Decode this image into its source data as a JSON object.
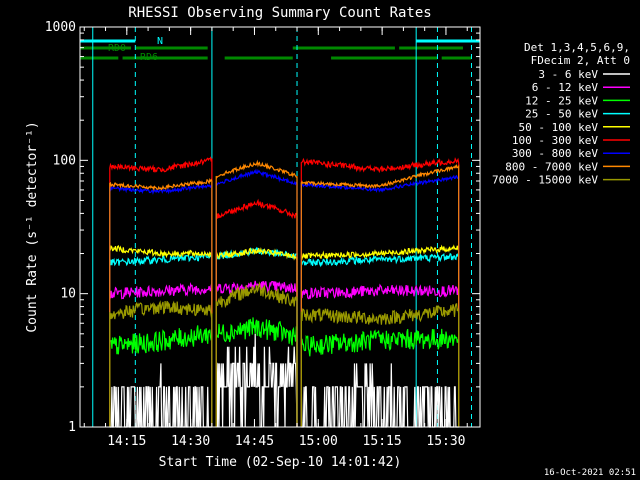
{
  "chart_data": {
    "type": "line",
    "title": "RHESSI Observing Summary Count Rates",
    "xlabel": "Start Time (02-Sep-10 14:01:42)",
    "ylabel": "Count Rate (s⁻¹ detector⁻¹)",
    "y_scale": "log",
    "ylim": [
      1,
      1000
    ],
    "xlim": [
      "14:04",
      "15:38"
    ],
    "x_ticks": [
      "14:15",
      "14:30",
      "14:45",
      "15:00",
      "15:15",
      "15:30"
    ],
    "y_ticks": [
      "1",
      "10",
      "100",
      "1000"
    ],
    "grid": false,
    "legend_position": "top-right",
    "legend_header": [
      "Det 1,3,4,5,6,9,",
      "FDecim 2, Att 0"
    ],
    "footer_date": "16-Oct-2021 02:51",
    "flag_labels": {
      "night": "N",
      "rd0": "RD0",
      "rd6": "RD6"
    },
    "flag_segments": {
      "night": [
        [
          "14:04",
          "14:17"
        ],
        [
          "15:23",
          "15:38"
        ]
      ],
      "rd0": [
        [
          "14:04",
          "14:16"
        ],
        [
          "14:17",
          "14:34"
        ],
        [
          "14:54",
          "15:18"
        ],
        [
          "15:19",
          "15:34"
        ]
      ],
      "rd6": [
        [
          "14:04",
          "14:13"
        ],
        [
          "14:14",
          "14:34"
        ],
        [
          "14:38",
          "14:54"
        ],
        [
          "15:03",
          "15:28"
        ],
        [
          "15:29",
          "15:36"
        ]
      ]
    },
    "event_markers": [
      {
        "time": "14:07",
        "style": "solid"
      },
      {
        "time": "14:17",
        "style": "dashed"
      },
      {
        "time": "14:35",
        "style": "solid"
      },
      {
        "time": "14:55",
        "style": "dashed"
      },
      {
        "time": "15:23",
        "style": "solid"
      },
      {
        "time": "15:28",
        "style": "dashed"
      },
      {
        "time": "15:36",
        "style": "dashed"
      }
    ],
    "segments": [
      [
        "14:11",
        "14:35"
      ],
      [
        "14:36",
        "14:55"
      ],
      [
        "14:56",
        "15:33"
      ]
    ],
    "series": [
      {
        "name": "3 - 6 keV",
        "color": "#ffffff",
        "values": [
          [
            1.2,
            1.5,
            1.2
          ],
          [
            2.0,
            2.6,
            2.0
          ],
          [
            1.2,
            1.5,
            1.2
          ]
        ]
      },
      {
        "name": "6 - 12 keV",
        "color": "#ff00ff",
        "values": [
          [
            10,
            10.5,
            11
          ],
          [
            11,
            11.5,
            11
          ],
          [
            10,
            10.5,
            10.5
          ]
        ]
      },
      {
        "name": "12 - 25 keV",
        "color": "#00ff00",
        "values": [
          [
            4.0,
            4.4,
            5.0
          ],
          [
            5.0,
            5.6,
            4.8
          ],
          [
            4.0,
            4.5,
            4.6
          ]
        ]
      },
      {
        "name": "25 - 50 keV",
        "color": "#00ffff",
        "values": [
          [
            17,
            18,
            19
          ],
          [
            19,
            21,
            19
          ],
          [
            17,
            18,
            19
          ]
        ]
      },
      {
        "name": "50 - 100 keV",
        "color": "#ffff00",
        "values": [
          [
            22,
            20,
            20
          ],
          [
            19,
            21,
            19
          ],
          [
            19,
            20,
            22
          ]
        ]
      },
      {
        "name": "100 - 300 keV",
        "color": "#ff0000",
        "values": [
          [
            90,
            85,
            100
          ],
          [
            38,
            48,
            38
          ],
          [
            98,
            85,
            100
          ]
        ]
      },
      {
        "name": "300 - 800 keV",
        "color": "#0000ff",
        "values": [
          [
            62,
            58,
            65
          ],
          [
            66,
            82,
            66
          ],
          [
            66,
            60,
            75
          ]
        ]
      },
      {
        "name": "800 - 7000 keV",
        "color": "#ff8800",
        "values": [
          [
            66,
            62,
            70
          ],
          [
            76,
            95,
            76
          ],
          [
            68,
            64,
            90
          ]
        ]
      },
      {
        "name": "7000 - 15000 keV",
        "color": "#999900",
        "values": [
          [
            7.0,
            8.0,
            7.5
          ],
          [
            8.5,
            11.0,
            8.5
          ],
          [
            7.0,
            6.5,
            7.5
          ]
        ]
      }
    ]
  }
}
